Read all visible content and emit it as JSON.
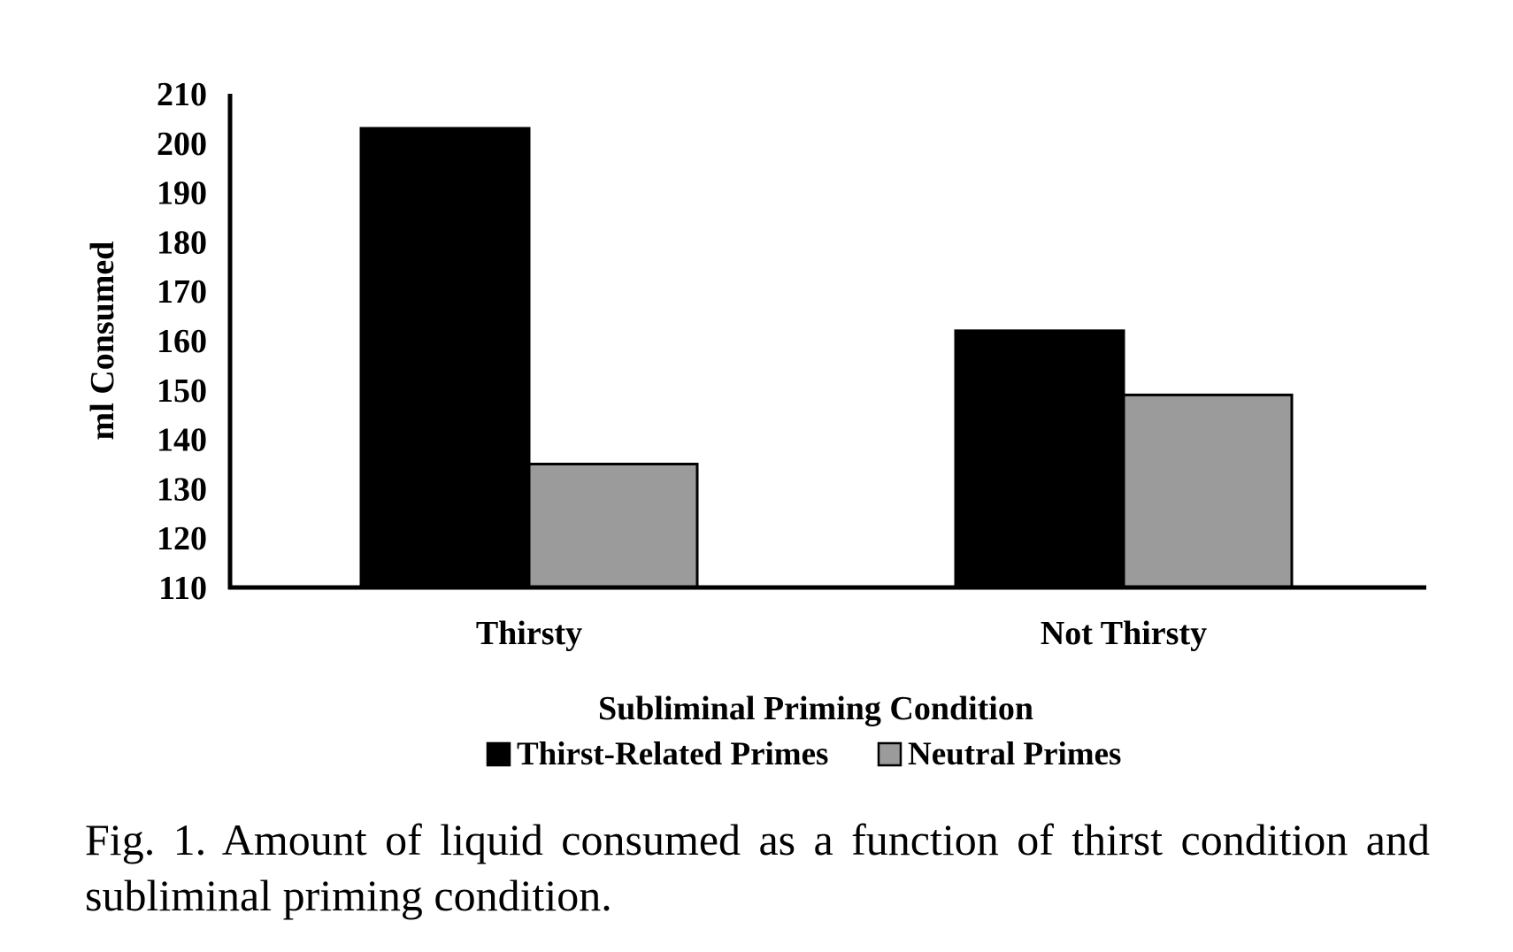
{
  "chart_data": {
    "type": "bar",
    "categories": [
      "Thirsty",
      "Not Thirsty"
    ],
    "series": [
      {
        "name": "Thirst-Related Primes",
        "color": "#000000",
        "values": [
          203,
          162
        ]
      },
      {
        "name": "Neutral Primes",
        "color": "#9b9b9b",
        "values": [
          135,
          149
        ]
      }
    ],
    "xlabel": "Subliminal Priming Condition",
    "ylabel": "ml Consumed",
    "ylim": [
      110,
      210
    ],
    "yticks": [
      "110",
      "120",
      "130",
      "140",
      "150",
      "160",
      "170",
      "180",
      "190",
      "200",
      "210"
    ],
    "grid": false,
    "legend_position": "bottom"
  },
  "caption": "Fig. 1. Amount of liquid consumed as a function of thirst condition and subliminal priming condition."
}
